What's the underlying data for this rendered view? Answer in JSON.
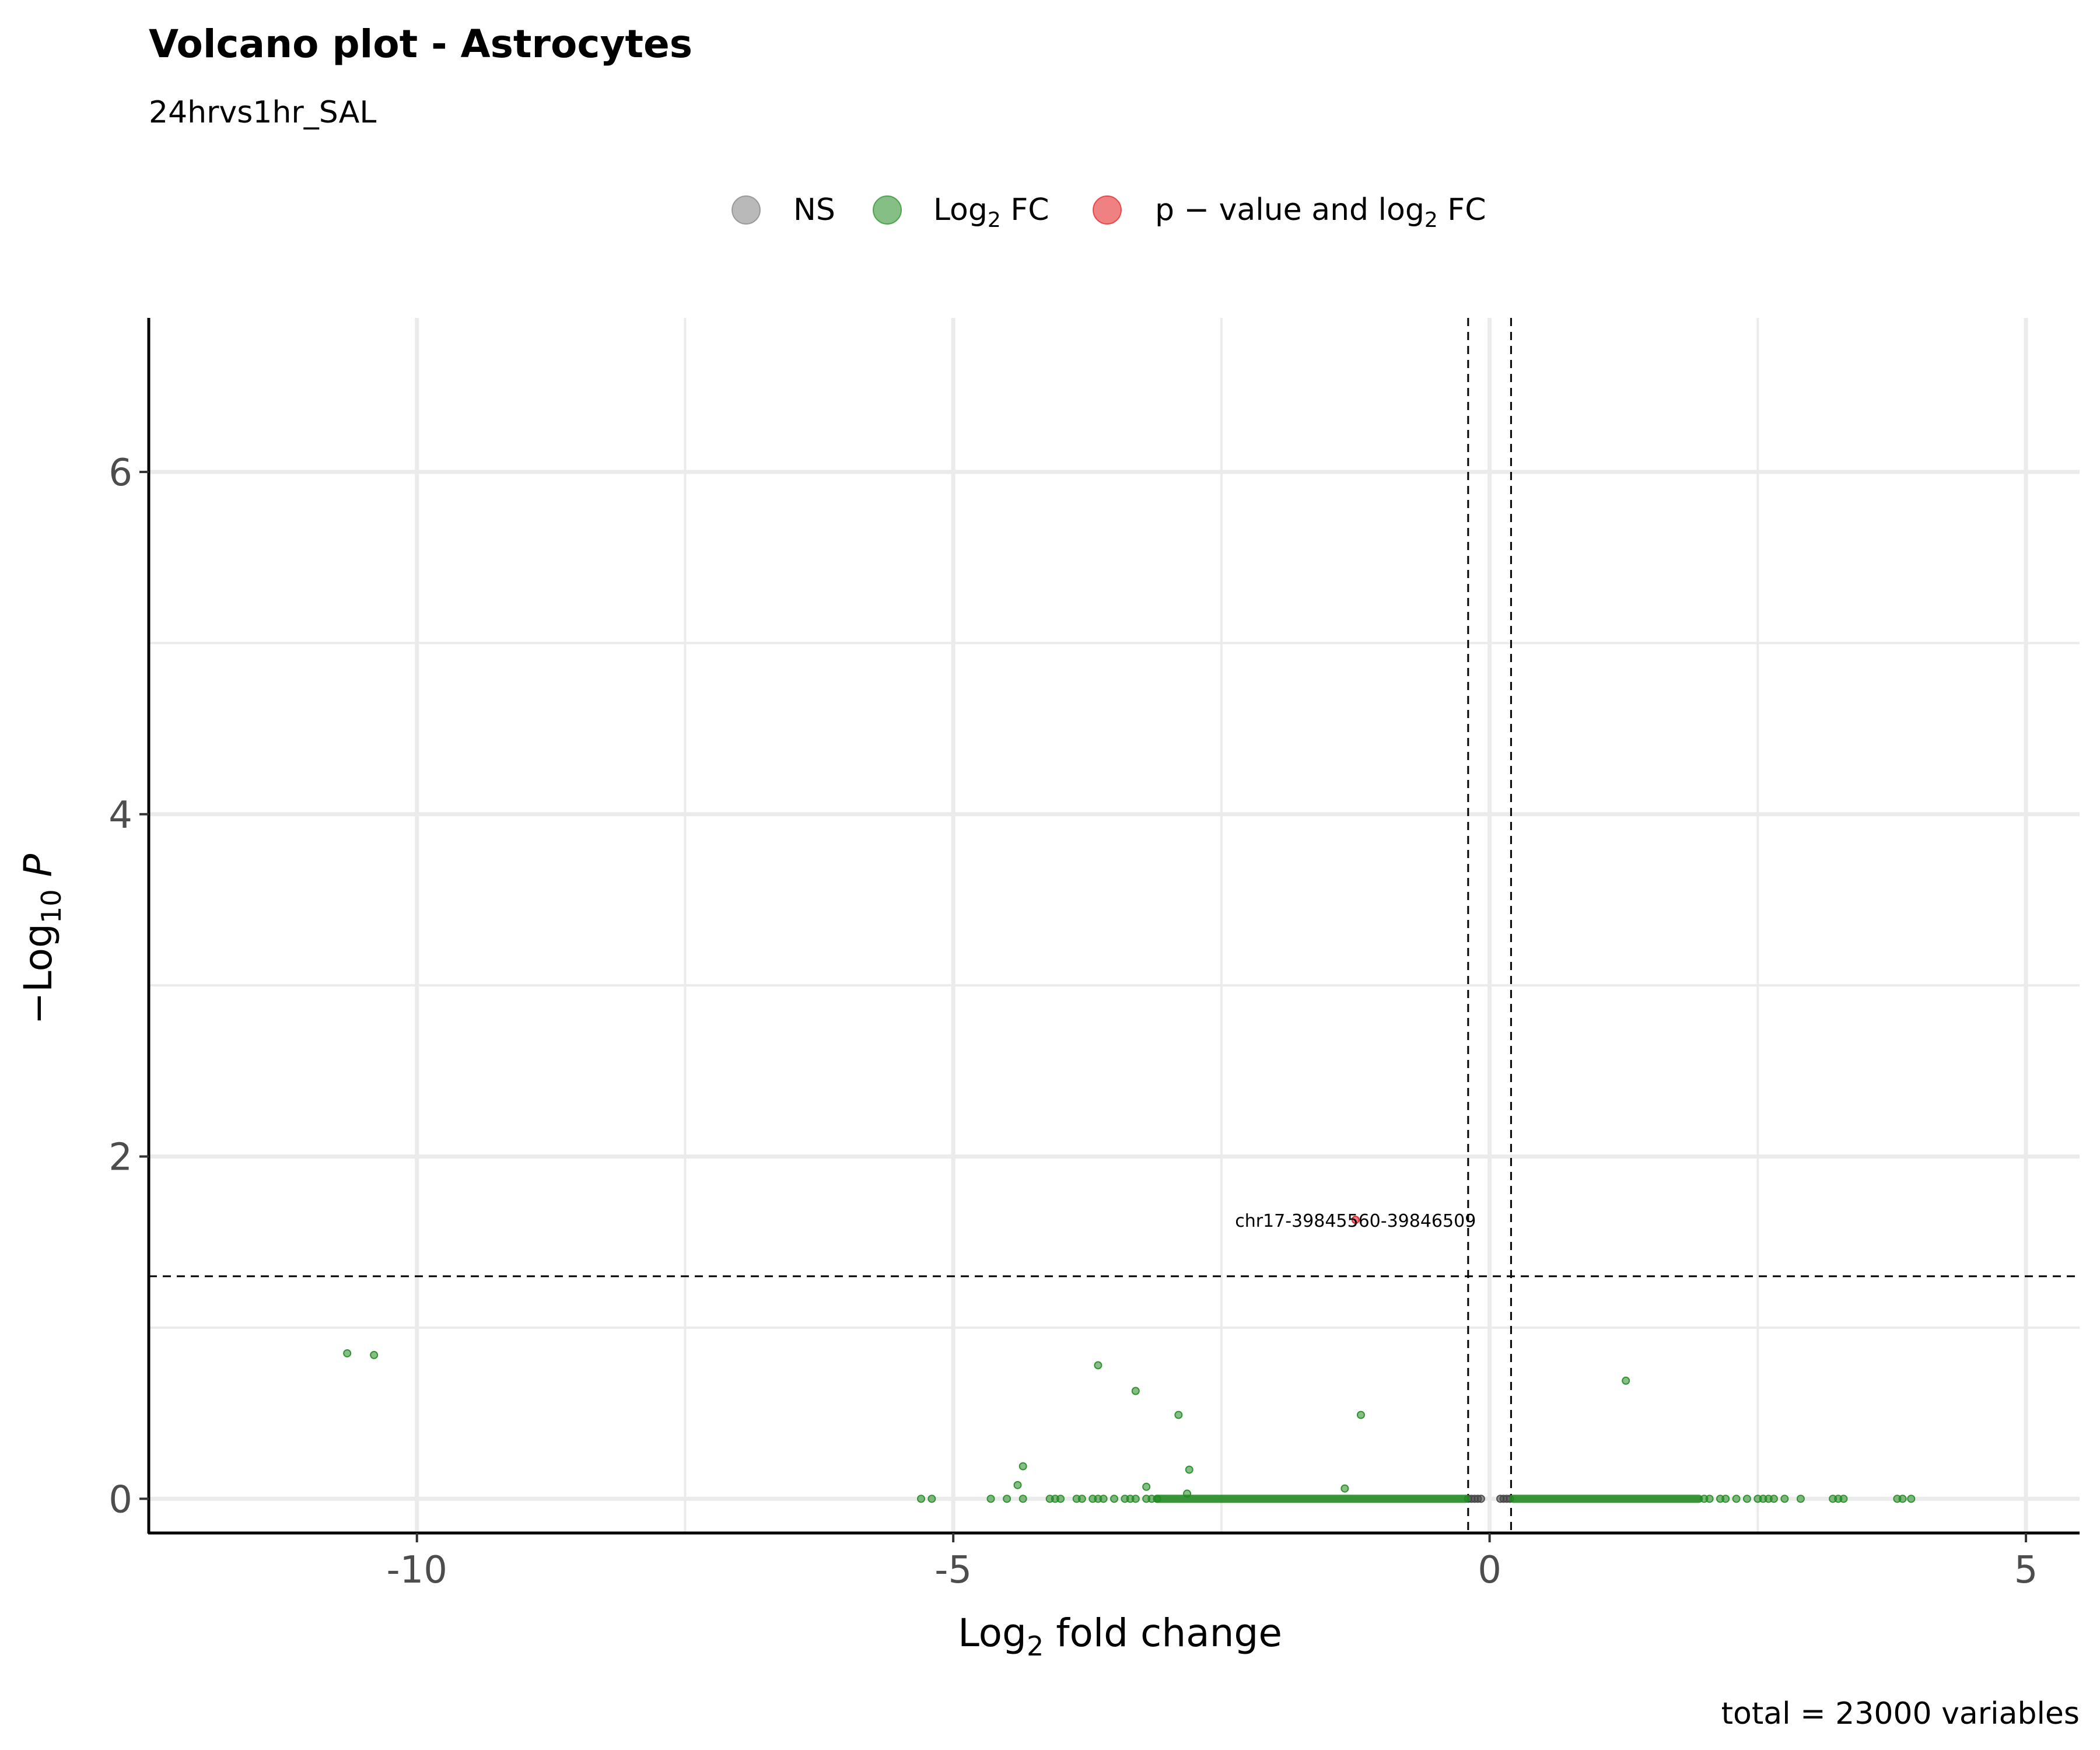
{
  "chart_data": {
    "type": "scatter",
    "title": "Volcano plot - Astrocytes",
    "subtitle": "24hrvs1hr_SAL",
    "caption": "total = 23000 variables",
    "xlabel": {
      "main": "Log",
      "sub": "2",
      "rest": " fold change"
    },
    "ylabel": {
      "minus": "−",
      "main": "Log",
      "sub": "10",
      "italic": "P"
    },
    "xlim": [
      -12.5,
      5.5
    ],
    "ylim": [
      -0.2,
      6.9
    ],
    "x_ticks": [
      -10,
      -5,
      0,
      5
    ],
    "x_tick_labels": [
      "-10",
      "-5",
      "0",
      "5"
    ],
    "y_ticks": [
      0,
      2,
      4,
      6
    ],
    "y_tick_labels": [
      "0",
      "2",
      "4",
      "6"
    ],
    "grid": true,
    "legend_position": "top",
    "legend": [
      {
        "key": "NS",
        "color": "#808080",
        "label_main": "NS",
        "label_sub": "",
        "label_rest": ""
      },
      {
        "key": "FC",
        "color": "#228B22",
        "label_main": "Log",
        "label_sub": "2",
        "label_rest": " FC"
      },
      {
        "key": "P_FC",
        "color": "#E41A1C",
        "label_main": "p − value and log",
        "label_sub": "2",
        "label_rest": " FC"
      }
    ],
    "cutoffs": {
      "fc": 0.2,
      "p_log10": 1.3
    },
    "series": [
      {
        "key": "NS",
        "color": "#444444",
        "points": [
          [
            -0.2,
            0
          ],
          [
            -0.17,
            0
          ],
          [
            -0.14,
            0
          ],
          [
            -0.11,
            0
          ],
          [
            -0.08,
            0
          ],
          [
            0.1,
            0
          ],
          [
            0.13,
            0
          ],
          [
            0.16,
            0
          ],
          [
            0.19,
            0
          ]
        ]
      },
      {
        "key": "FC",
        "color": "#228B22",
        "points": [
          [
            -10.65,
            0.85
          ],
          [
            -10.4,
            0.84
          ],
          [
            -3.65,
            0.78
          ],
          [
            -3.3,
            0.63
          ],
          [
            -2.9,
            0.49
          ],
          [
            -1.2,
            0.49
          ],
          [
            1.27,
            0.69
          ],
          [
            -4.35,
            0.19
          ],
          [
            -2.8,
            0.17
          ],
          [
            -4.4,
            0.08
          ],
          [
            -3.2,
            0.07
          ],
          [
            -1.35,
            0.06
          ],
          [
            -2.82,
            0.03
          ],
          [
            -5.3,
            0
          ],
          [
            -5.2,
            0
          ],
          [
            -4.65,
            0
          ],
          [
            -4.5,
            0
          ],
          [
            -4.35,
            0
          ],
          [
            -4.1,
            0
          ],
          [
            -4.05,
            0
          ],
          [
            -4.0,
            0
          ],
          [
            -3.85,
            0
          ],
          [
            -3.8,
            0
          ],
          [
            -3.7,
            0
          ],
          [
            -3.65,
            0
          ],
          [
            -3.6,
            0
          ],
          [
            -3.5,
            0
          ],
          [
            -3.4,
            0
          ],
          [
            -3.35,
            0
          ],
          [
            -3.3,
            0
          ],
          [
            -3.2,
            0
          ],
          [
            -3.15,
            0
          ],
          [
            -3.1,
            0
          ],
          [
            2.0,
            0
          ],
          [
            2.05,
            0
          ],
          [
            2.15,
            0
          ],
          [
            2.2,
            0
          ],
          [
            2.3,
            0
          ],
          [
            2.4,
            0
          ],
          [
            2.5,
            0
          ],
          [
            2.55,
            0
          ],
          [
            2.6,
            0
          ],
          [
            2.65,
            0
          ],
          [
            2.75,
            0
          ],
          [
            2.9,
            0
          ],
          [
            3.2,
            0
          ],
          [
            3.25,
            0
          ],
          [
            3.3,
            0
          ],
          [
            3.8,
            0
          ],
          [
            3.85,
            0
          ],
          [
            3.93,
            0
          ]
        ],
        "bands": [
          [
            -3.1,
            -0.22,
            0
          ],
          [
            0.22,
            1.95,
            0
          ]
        ]
      },
      {
        "key": "P_FC",
        "color": "#E41A1C",
        "points": [
          [
            -1.25,
            1.63
          ]
        ]
      }
    ],
    "annotations": [
      {
        "text": "chr17-39845560-39846509",
        "x": -1.25,
        "y": 1.63
      }
    ]
  }
}
